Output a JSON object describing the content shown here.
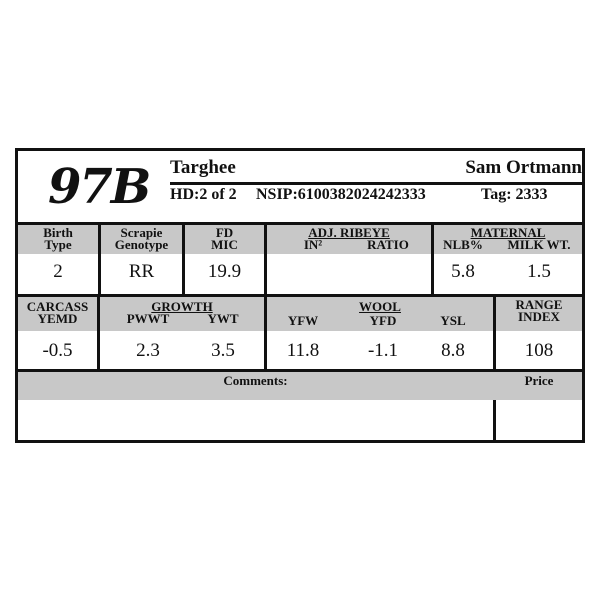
{
  "header": {
    "id": "97B",
    "breed": "Targhee",
    "owner": "Sam Ortmann",
    "hd": "HD:2 of 2",
    "nsip": "NSIP:6100382024242333",
    "tag": "Tag: 2333"
  },
  "row1": {
    "birth_type": {
      "label1": "Birth",
      "label2": "Type",
      "value": "2"
    },
    "scrapie": {
      "label1": "Scrapie",
      "label2": "Genotype",
      "value": "RR"
    },
    "fd": {
      "label1": "FD",
      "label2": "MIC",
      "value": "19.9"
    },
    "ribeye": {
      "label": "ADJ. RIBEYE",
      "sub1": "IN²",
      "sub2": "RATIO",
      "value1": "",
      "value2": ""
    },
    "maternal": {
      "label": "MATERNAL",
      "sub1": "NLB%",
      "sub2": "MILK WT.",
      "value1": "5.8",
      "value2": "1.5"
    }
  },
  "row2": {
    "carcass": {
      "label1": "CARCASS",
      "label2": "YEMD",
      "value": "-0.5"
    },
    "growth": {
      "label": "GROWTH",
      "sub1": "PWWT",
      "sub2": "YWT",
      "value1": "2.3",
      "value2": "3.5"
    },
    "wool": {
      "label": "WOOL",
      "sub1": "YFW",
      "sub2": "YFD",
      "sub3": "YSL",
      "value1": "11.8",
      "value2": "-1.1",
      "value3": "8.8"
    },
    "range": {
      "label1": "RANGE",
      "label2": "INDEX",
      "value": "108"
    }
  },
  "footer": {
    "comments": "Comments:",
    "price": "Price"
  }
}
